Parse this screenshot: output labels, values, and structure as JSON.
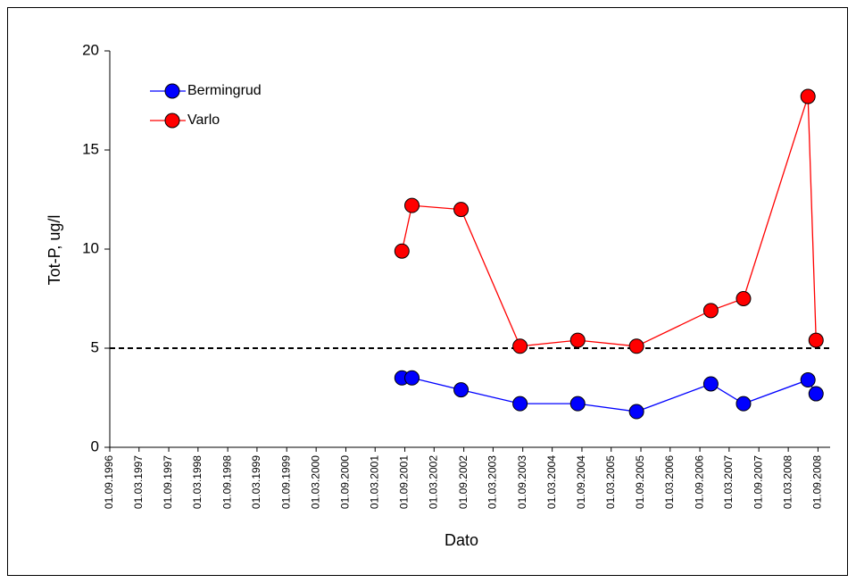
{
  "chart_data": {
    "type": "line",
    "xlabel": "Dato",
    "ylabel": "Tot-P, ug/l",
    "x": [
      "2001-08-14",
      "2001-10-15",
      "2002-08-15",
      "2003-08-15",
      "2004-08-06",
      "2005-08-05",
      "2006-11-08",
      "2007-05-29",
      "2008-07-01",
      "2008-08-20"
    ],
    "series": [
      {
        "name": "Bermingrud",
        "color": "#0000ff",
        "values": [
          3.5,
          3.5,
          2.9,
          2.2,
          2.2,
          1.8,
          3.2,
          2.2,
          3.4,
          2.7
        ]
      },
      {
        "name": "Varlo",
        "color": "#ff0000",
        "values": [
          9.9,
          12.2,
          12.0,
          5.1,
          5.4,
          5.1,
          6.9,
          7.5,
          17.7,
          5.4
        ]
      }
    ],
    "reference_line": 5,
    "xlim": [
      "1996-09-01",
      "2008-11-15"
    ],
    "xticks": [
      {
        "value": "1996-09-01",
        "label": "01.09.1996"
      },
      {
        "value": "1997-03-01",
        "label": "01.03.1997"
      },
      {
        "value": "1997-09-01",
        "label": "01.09.1997"
      },
      {
        "value": "1998-03-01",
        "label": "01.03.1998"
      },
      {
        "value": "1998-09-01",
        "label": "01.09.1998"
      },
      {
        "value": "1999-03-01",
        "label": "01.03.1999"
      },
      {
        "value": "1999-09-01",
        "label": "01.09.1999"
      },
      {
        "value": "2000-03-01",
        "label": "01.03.2000"
      },
      {
        "value": "2000-09-01",
        "label": "01.09.2000"
      },
      {
        "value": "2001-03-01",
        "label": "01.03.2001"
      },
      {
        "value": "2001-09-01",
        "label": "01.09.2001"
      },
      {
        "value": "2002-03-01",
        "label": "01.03.2002"
      },
      {
        "value": "2002-09-01",
        "label": "01.09.2002"
      },
      {
        "value": "2003-03-01",
        "label": "01.03.2003"
      },
      {
        "value": "2003-09-01",
        "label": "01.09.2003"
      },
      {
        "value": "2004-03-01",
        "label": "01.03.2004"
      },
      {
        "value": "2004-09-01",
        "label": "01.09.2004"
      },
      {
        "value": "2005-03-01",
        "label": "01.03.2005"
      },
      {
        "value": "2005-09-01",
        "label": "01.09.2005"
      },
      {
        "value": "2006-03-01",
        "label": "01.03.2006"
      },
      {
        "value": "2006-09-01",
        "label": "01.09.2006"
      },
      {
        "value": "2007-03-01",
        "label": "01.03.2007"
      },
      {
        "value": "2007-09-01",
        "label": "01.09.2007"
      },
      {
        "value": "2008-03-01",
        "label": "01.03.2008"
      },
      {
        "value": "2008-09-01",
        "label": "01.09.2008"
      }
    ],
    "ylim": [
      0,
      20
    ],
    "yticks": [
      0,
      5,
      10,
      15,
      20
    ],
    "grid": false,
    "legend": "upper left"
  }
}
